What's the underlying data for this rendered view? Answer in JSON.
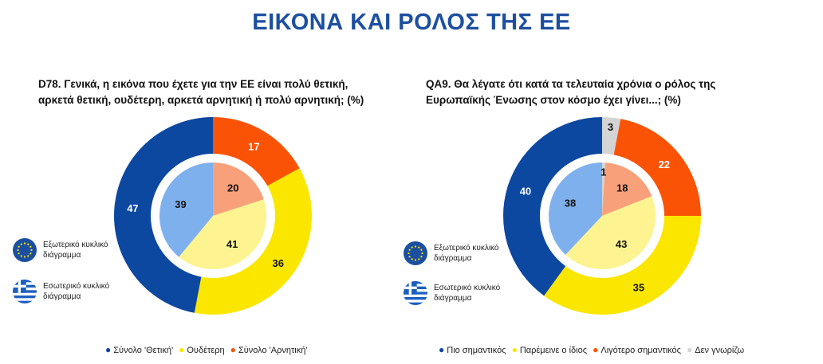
{
  "page_title": "ΕΙΚΟΝΑ ΚΑΙ ΡΟΛΟΣ ΤΗΣ ΕΕ",
  "ring_legend": {
    "outer": "Εξωτερικό κυκλικό διάγραμμα",
    "inner": "Εσωτερικό κυκλικό διάγραμμα"
  },
  "icons": {
    "outer": "eu-flag-icon",
    "inner": "greek-flag-icon"
  },
  "colors": {
    "navy": "#0c47a0",
    "yellow": "#fbe600",
    "orange": "#fa5305",
    "grey": "#d4d4d4",
    "light_blue": "#7fb0ee",
    "light_yellow": "#fdf390",
    "light_orange": "#f8a07a"
  },
  "chart_data": [
    {
      "type": "donut",
      "title": "D78. Γενικά, η εικόνα που έχετε για την ΕΕ είναι πολύ θετική, αρκετά θετική, ουδέτερη, αρκετά αρνητική ή πολύ αρνητική; (%)",
      "categories": [
        "Σύνολο 'Θετική'",
        "Ουδέτερη",
        "Σύνολο 'Αρνητική'"
      ],
      "legend_colors": [
        "#0c47a0",
        "#fbe600",
        "#fa5305"
      ],
      "series": [
        {
          "name": "Εξωτερικό κυκλικό διάγραμμα",
          "ring": "outer",
          "values": [
            17,
            36,
            47
          ],
          "order": [
            "Σύνολο 'Αρνητική'",
            "Ουδέτερη",
            "Σύνολο 'Θετική'"
          ],
          "colors": [
            "#fa5305",
            "#fbe600",
            "#0c47a0"
          ]
        },
        {
          "name": "Εσωτερικό κυκλικό διάγραμμα",
          "ring": "inner",
          "values": [
            20,
            41,
            39
          ],
          "order": [
            "Σύνολο 'Αρνητική'",
            "Ουδέτερη",
            "Σύνολο 'Θετική'"
          ],
          "colors": [
            "#f8a07a",
            "#fdf390",
            "#7fb0ee"
          ]
        }
      ],
      "legend_placement": "bottom"
    },
    {
      "type": "donut",
      "title": "QA9. Θα λέγατε ότι κατά τα τελευταία χρόνια ο ρόλος της Ευρωπαϊκής Ένωσης στον κόσμο έχει γίνει...; (%)",
      "categories": [
        "Πιο σημαντικός",
        "Παρέμεινε ο ίδιος",
        "Λιγότερο σημαντικός",
        "Δεν γνωρίζω"
      ],
      "legend_colors": [
        "#0c47a0",
        "#fbe600",
        "#fa5305",
        "#d4d4d4"
      ],
      "series": [
        {
          "name": "Εξωτερικό κυκλικό διάγραμμα",
          "ring": "outer",
          "values": [
            3,
            22,
            35,
            40
          ],
          "order": [
            "Δεν γνωρίζω",
            "Λιγότερο σημαντικός",
            "Παρέμεινε ο ίδιος",
            "Πιο σημαντικός"
          ],
          "colors": [
            "#d4d4d4",
            "#fa5305",
            "#fbe600",
            "#0c47a0"
          ]
        },
        {
          "name": "Εσωτερικό κυκλικό διάγραμμα",
          "ring": "inner",
          "values": [
            1,
            18,
            43,
            38
          ],
          "order": [
            "Δεν γνωρίζω",
            "Λιγότερο σημαντικός",
            "Παρέμεινε ο ίδιος",
            "Πιο σημαντικός"
          ],
          "colors": [
            "#d4d4d4",
            "#f8a07a",
            "#fdf390",
            "#7fb0ee"
          ]
        }
      ],
      "legend_placement": "bottom"
    }
  ]
}
